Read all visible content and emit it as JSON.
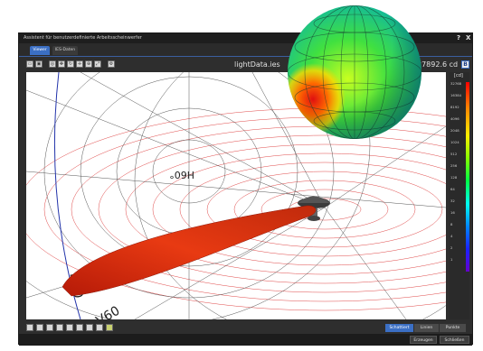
{
  "window": {
    "title": "Assistent für benutzerdefinierte Arbeitsscheinwerfer",
    "help_label": "?",
    "close_label": "X"
  },
  "tabs": [
    {
      "label": "Viewer",
      "active": true
    },
    {
      "label": "IES-Daten",
      "active": false
    }
  ],
  "toolbar": {
    "icons": [
      "screen-icon",
      "image-icon",
      "orbit-icon",
      "move-icon",
      "rotate-icon",
      "pan-icon",
      "zoom-icon",
      "expand-icon",
      "settings-icon"
    ],
    "file_name": "lightData.ies",
    "cd_value": "37892.6 cd",
    "cd_button": "B"
  },
  "viewport": {
    "angle_label": "H60°",
    "angle_label_bottom_1": "H90",
    "angle_label_bottom_2": "V60"
  },
  "legend": {
    "unit": "[cd]",
    "values": [
      "32768",
      "16384",
      "8192",
      "4096",
      "2048",
      "1024",
      "512",
      "256",
      "128",
      "64",
      "32",
      "16",
      "8",
      "4",
      "2",
      "1"
    ]
  },
  "bottom_toolbar": {
    "icons": [
      "view-front-icon",
      "view-side-icon",
      "view-top-icon",
      "view-iso-icon",
      "view-back-icon",
      "view-grid-icon",
      "view-3d-icon",
      "view-globe-icon",
      "view-color-icon"
    ]
  },
  "render_mode": {
    "options": [
      {
        "label": "Schattiert",
        "active": true
      },
      {
        "label": "Linien",
        "active": false
      },
      {
        "label": "Punkte",
        "active": false
      }
    ]
  },
  "footer": {
    "generate_label": "Erzeugen",
    "close_label": "Schließen"
  },
  "colors": {
    "accent": "#3b6fc4",
    "lobe": "#d92a10",
    "grid_red": "#e04040"
  }
}
